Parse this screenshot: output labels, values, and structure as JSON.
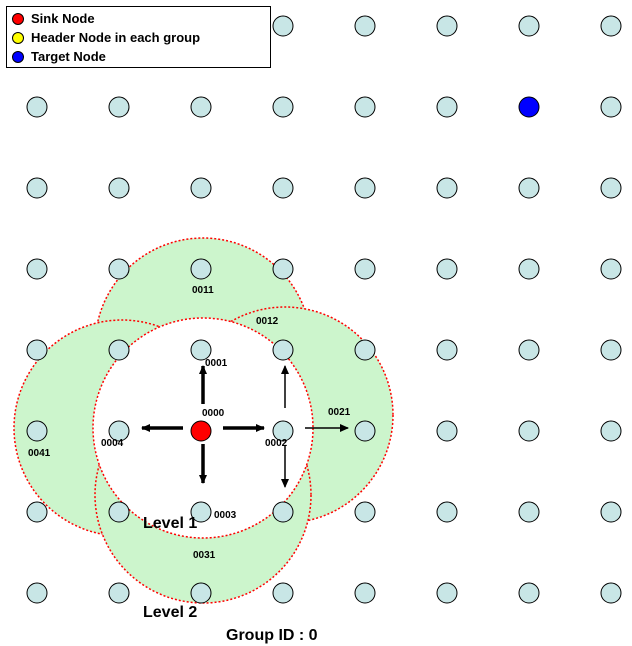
{
  "legend": {
    "items": [
      {
        "label": "Sink Node",
        "color": "#ff0000"
      },
      {
        "label": "Header Node in each group",
        "color": "#ffff00"
      },
      {
        "label": "Target Node",
        "color": "#0000ff"
      }
    ]
  },
  "grid": {
    "rows": 8,
    "cols": 8,
    "node_fill": "#c8e6e6",
    "node_stroke": "#000000",
    "sink": {
      "row": 5,
      "col": 2,
      "color": "#ff0000"
    },
    "target": {
      "row": 1,
      "col": 6,
      "color": "#0000ff"
    }
  },
  "ranges": {
    "level2_fill": "#ccf5cc",
    "level1_fill": "#ffffff",
    "border_color": "#ff0000"
  },
  "group_ids": {
    "g0000": "0000",
    "g0001": "0001",
    "g0002": "0002",
    "g0003": "0003",
    "g0004": "0004",
    "g0011": "0011",
    "g0012": "0012",
    "g0021": "0021",
    "g0031": "0031",
    "g0041": "0041"
  },
  "labels": {
    "level1": "Level 1",
    "level2": "Level 2",
    "caption": "Group ID : 0"
  }
}
